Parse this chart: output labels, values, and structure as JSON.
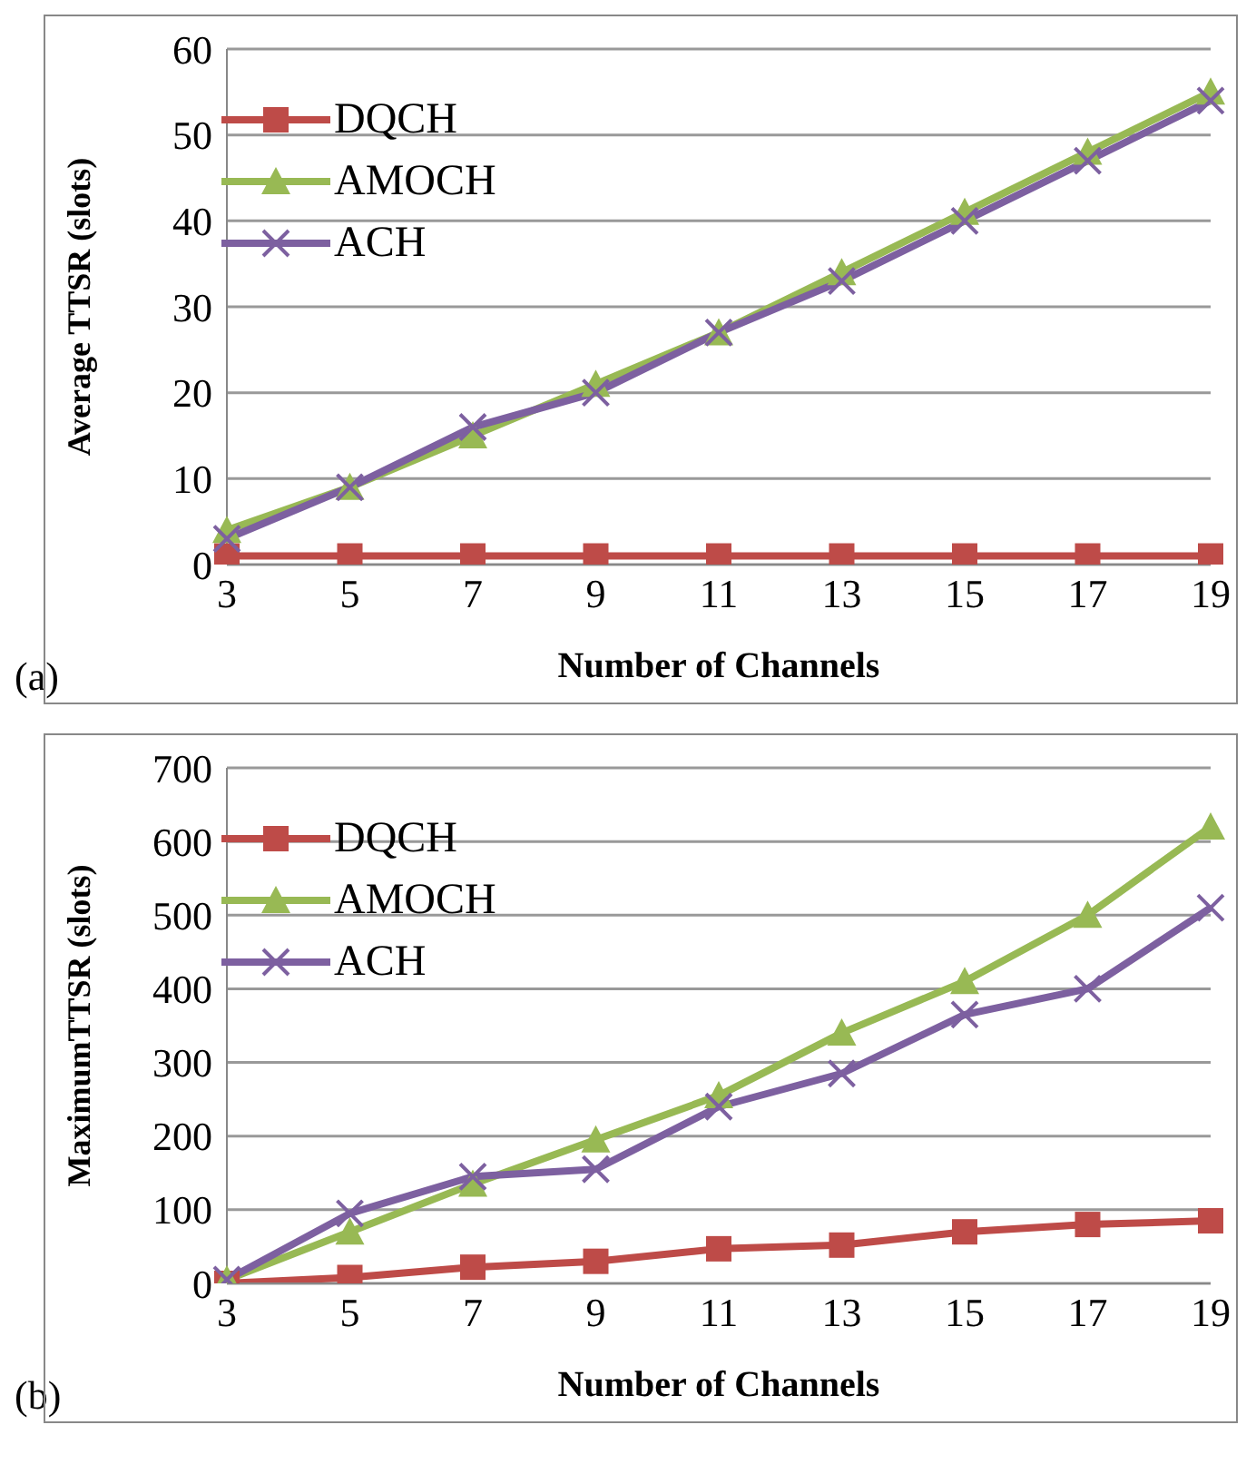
{
  "chart_data": [
    {
      "type": "line",
      "categories": [
        "3",
        "5",
        "7",
        "9",
        "11",
        "13",
        "15",
        "17",
        "19"
      ],
      "xlabel": "Number of Channels",
      "ylabel": "Average TTSR (slots)",
      "ylim": [
        0,
        60
      ],
      "yticks": [
        0,
        10,
        20,
        30,
        40,
        50,
        60
      ],
      "grid": "y",
      "legend": "top left",
      "annotations": [
        "(a)"
      ],
      "series": [
        {
          "name": "DQCH",
          "color": "#be4b48",
          "marker": "square",
          "values": [
            1,
            1,
            1,
            1,
            1,
            1,
            1,
            1,
            1
          ]
        },
        {
          "name": "AMOCH",
          "color": "#98b954",
          "marker": "triangle",
          "values": [
            4,
            9,
            15,
            21,
            27,
            34,
            41,
            48,
            55
          ]
        },
        {
          "name": "ACH",
          "color": "#7d60a0",
          "marker": "cross",
          "values": [
            3,
            9,
            16,
            20,
            27,
            33,
            40,
            47,
            54
          ]
        }
      ]
    },
    {
      "type": "line",
      "categories": [
        "3",
        "5",
        "7",
        "9",
        "11",
        "13",
        "15",
        "17",
        "19"
      ],
      "xlabel": "Number of Channels",
      "ylabel": "MaximumTTSR (slots)",
      "ylim": [
        0,
        700
      ],
      "yticks": [
        0,
        100,
        200,
        300,
        400,
        500,
        600,
        700
      ],
      "grid": "y",
      "legend": "top left",
      "annotations": [
        "(b)"
      ],
      "series": [
        {
          "name": "DQCH",
          "color": "#be4b48",
          "marker": "square",
          "values": [
            0,
            8,
            22,
            30,
            47,
            52,
            70,
            80,
            85
          ]
        },
        {
          "name": "AMOCH",
          "color": "#98b954",
          "marker": "triangle",
          "values": [
            5,
            70,
            135,
            195,
            255,
            340,
            410,
            500,
            620
          ]
        },
        {
          "name": "ACH",
          "color": "#7d60a0",
          "marker": "cross",
          "values": [
            5,
            95,
            145,
            155,
            240,
            285,
            365,
            400,
            510
          ]
        }
      ]
    }
  ]
}
